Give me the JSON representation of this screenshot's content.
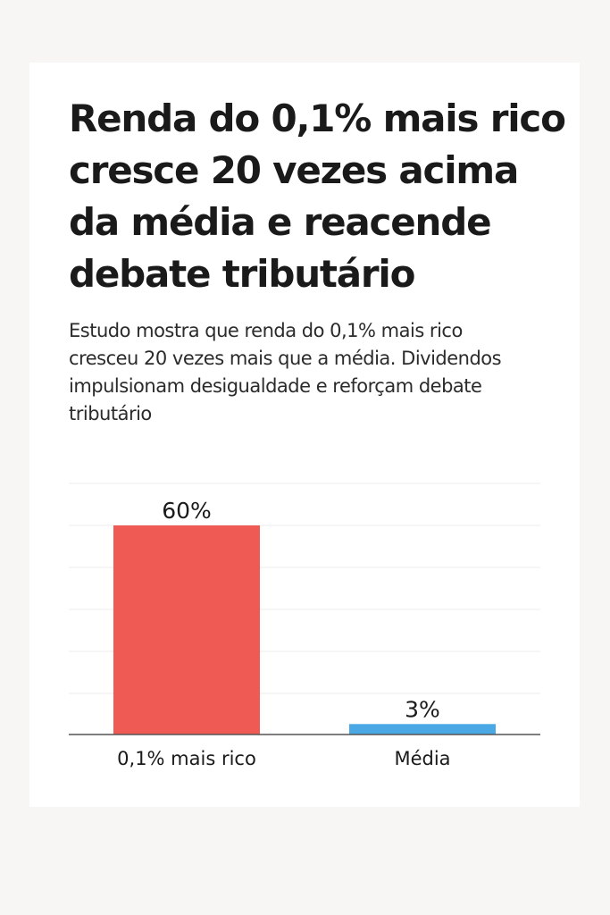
{
  "article": {
    "headline": "Renda do 0,1% mais rico cresce 20 vezes acima da média e reacende debate tributário",
    "subheadline": "Estudo mostra que renda do 0,1% mais rico cresceu 20 vezes mais que a média. Dividendos impulsionam desigualdade e reforçam debate tributário"
  },
  "chart_data": {
    "type": "bar",
    "title": "",
    "xlabel": "",
    "ylabel": "",
    "categories": [
      "0,1% mais rico",
      "Média"
    ],
    "values": [
      60,
      3
    ],
    "value_labels": [
      "60%",
      "3%"
    ],
    "colors": [
      "#ef5a55",
      "#4aa8e4"
    ],
    "ylim": [
      0,
      60
    ],
    "grid": true,
    "legend": "none"
  }
}
